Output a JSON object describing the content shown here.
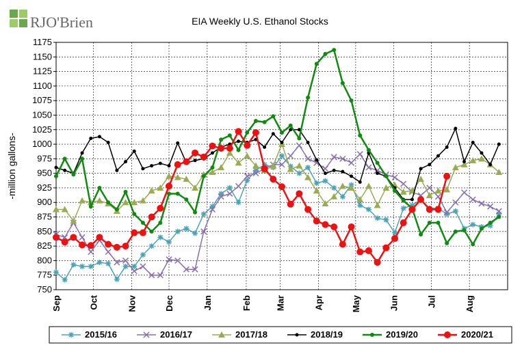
{
  "logo": "RJO'Brien",
  "chart_data": {
    "type": "line",
    "title": "EIA Weekly U.S. Ethanol Stocks",
    "ylabel": "-million gallons-",
    "x": [
      0,
      1,
      2,
      3,
      4,
      5,
      6,
      7,
      8,
      9,
      10,
      11,
      12,
      13,
      14,
      15,
      16,
      17,
      18,
      19,
      20,
      21,
      22,
      23,
      24,
      25,
      26,
      27,
      28,
      29,
      30,
      31,
      32,
      33,
      34,
      35,
      36,
      37,
      38,
      39,
      40,
      41,
      42,
      43,
      44,
      45,
      46,
      47,
      48,
      49,
      50,
      51
    ],
    "xlim": [
      0,
      52
    ],
    "xticks": [
      {
        "value": 0,
        "label": "Sep"
      },
      {
        "value": 4.3,
        "label": "Oct"
      },
      {
        "value": 8.7,
        "label": "Nov"
      },
      {
        "value": 13,
        "label": "Dec"
      },
      {
        "value": 17.4,
        "label": "Jan"
      },
      {
        "value": 21.9,
        "label": "Feb"
      },
      {
        "value": 25.8,
        "label": "Mar"
      },
      {
        "value": 30.2,
        "label": "Apr"
      },
      {
        "value": 34.5,
        "label": "May"
      },
      {
        "value": 38.9,
        "label": "Jun"
      },
      {
        "value": 43.2,
        "label": "Jul"
      },
      {
        "value": 47.6,
        "label": "Aug"
      }
    ],
    "ylim": [
      750,
      1175
    ],
    "yticks": [
      750,
      775,
      800,
      825,
      850,
      875,
      900,
      925,
      950,
      975,
      1000,
      1025,
      1050,
      1075,
      1100,
      1125,
      1150,
      1175
    ],
    "grid": true,
    "legend": "bottom",
    "series": [
      {
        "name": "2015/16",
        "color": "#4aa3b5",
        "marker": "star",
        "values": [
          780,
          767,
          793,
          790,
          790,
          797,
          795,
          768,
          790,
          790,
          810,
          825,
          840,
          832,
          850,
          855,
          847,
          880,
          893,
          915,
          925,
          900,
          938,
          955,
          965,
          960,
          980,
          962,
          950,
          960,
          933,
          937,
          925,
          910,
          930,
          895,
          888,
          873,
          870,
          848,
          890,
          895,
          905,
          890,
          890,
          880,
          885,
          855,
          862,
          858,
          860,
          880
        ]
      },
      {
        "name": "2016/17",
        "color": "#8a6fb0",
        "marker": "x",
        "values": [
          845,
          840,
          865,
          840,
          815,
          835,
          815,
          797,
          800,
          782,
          790,
          775,
          775,
          802,
          800,
          785,
          785,
          850,
          888,
          910,
          915,
          928,
          945,
          950,
          958,
          965,
          965,
          980,
          998,
          975,
          968,
          958,
          978,
          975,
          968,
          983,
          960,
          955,
          948,
          943,
          932,
          918,
          912,
          925,
          910,
          883,
          900,
          917,
          905,
          898,
          893,
          885
        ]
      },
      {
        "name": "2017/18",
        "color": "#9aab52",
        "marker": "triangle",
        "values": [
          888,
          888,
          868,
          903,
          900,
          903,
          898,
          885,
          900,
          900,
          903,
          920,
          925,
          945,
          943,
          940,
          925,
          948,
          952,
          960,
          985,
          968,
          980,
          963,
          955,
          963,
          1000,
          957,
          963,
          943,
          920,
          898,
          910,
          928,
          925,
          905,
          928,
          895,
          925,
          930,
          918,
          920,
          940,
          912,
          920,
          922,
          960,
          965,
          972,
          975,
          965,
          952
        ]
      },
      {
        "name": "2018/19",
        "color": "#000000",
        "marker": "dot",
        "values": [
          960,
          955,
          950,
          985,
          1010,
          1013,
          1003,
          955,
          970,
          988,
          958,
          963,
          967,
          963,
          1002,
          968,
          972,
          975,
          985,
          995,
          1000,
          1005,
          1003,
          1008,
          995,
          1018,
          1003,
          1025,
          1025,
          1003,
          973,
          950,
          955,
          953,
          945,
          935,
          985,
          950,
          945,
          925,
          905,
          905,
          958,
          965,
          980,
          995,
          1027,
          970,
          1003,
          985,
          965,
          1000
        ]
      },
      {
        "name": "2019/20",
        "color": "#118a11",
        "marker": "circle",
        "values": [
          945,
          975,
          948,
          975,
          893,
          925,
          900,
          888,
          918,
          880,
          865,
          850,
          865,
          915,
          915,
          905,
          883,
          945,
          960,
          1008,
          1015,
          990,
          1020,
          1040,
          1038,
          1048,
          1020,
          1032,
          1010,
          1080,
          1138,
          1155,
          1162,
          1105,
          1075,
          1015,
          990,
          968,
          945,
          920,
          903,
          890,
          845,
          865,
          865,
          830,
          850,
          852,
          828,
          855,
          865,
          875
        ]
      },
      {
        "name": "2020/21",
        "color": "#ee1111",
        "marker": "big",
        "values": [
          840,
          832,
          840,
          827,
          826,
          840,
          828,
          823,
          825,
          848,
          848,
          875,
          890,
          928,
          965,
          970,
          985,
          978,
          997,
          993,
          993,
          1022,
          998,
          1020,
          958,
          940,
          927,
          897,
          915,
          888,
          868,
          862,
          858,
          828,
          858,
          815,
          817,
          797,
          822,
          838,
          865,
          888,
          905,
          888,
          888,
          945,
          null,
          null,
          null,
          null,
          null,
          null
        ]
      }
    ]
  }
}
